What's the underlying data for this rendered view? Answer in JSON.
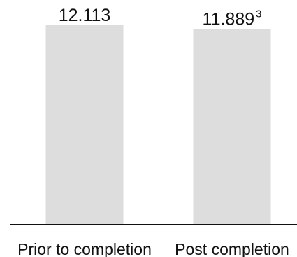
{
  "chart_data": {
    "type": "bar",
    "categories": [
      "Prior to completion",
      "Post completion"
    ],
    "values": [
      12.113,
      11.889
    ],
    "value_labels": [
      "12.113",
      "11.889"
    ],
    "footnote_markers": [
      "",
      "3"
    ],
    "ylim": [
      0,
      12.113
    ],
    "title": "",
    "xlabel": "",
    "ylabel": "",
    "bar_color": "#dddddd",
    "axis_color": "#111111",
    "grid": false
  }
}
